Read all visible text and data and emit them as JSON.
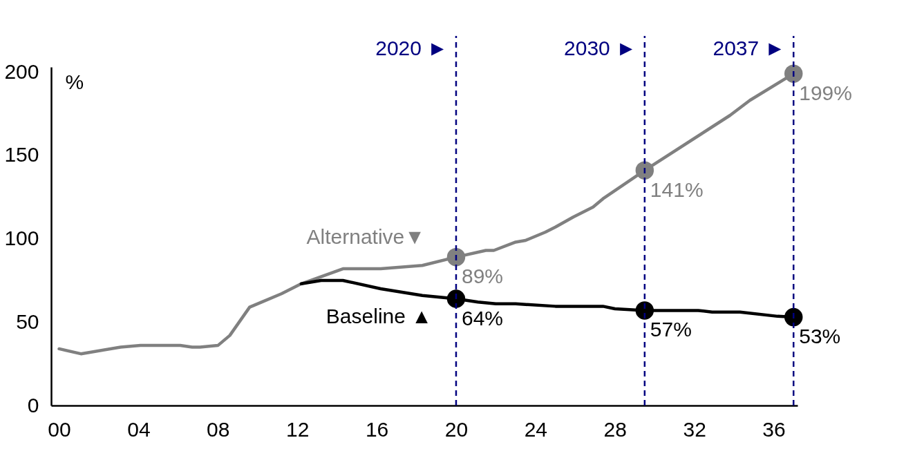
{
  "chart_data": {
    "type": "line",
    "ylabel": "%",
    "xlim": [
      -0.4,
      37.2
    ],
    "xticks": [
      {
        "value": 0,
        "label": "00"
      },
      {
        "value": 4,
        "label": "04"
      },
      {
        "value": 8,
        "label": "08"
      },
      12,
      16,
      20,
      24,
      28,
      32,
      36
    ],
    "ylim": [
      0,
      203
    ],
    "yticks": [
      0,
      50,
      100,
      150,
      200
    ],
    "grid": false,
    "marker": "none",
    "line_style": "solid",
    "series": [
      {
        "name": "Alternative▼",
        "color": "#808080",
        "x": [
          0,
          1.1,
          3.1,
          4.1,
          6.1,
          6.7,
          7.1,
          8.0,
          8.6,
          9.6,
          10.2,
          11.2,
          12.2,
          14.3,
          16.2,
          18.3,
          20,
          21.5,
          21.9,
          23,
          23.5,
          24.5,
          25,
          25.9,
          26.9,
          27.4,
          29.5,
          33.8,
          34.8,
          37
        ],
        "values": [
          34,
          31,
          35,
          36,
          36,
          35,
          35,
          36,
          42,
          59,
          62,
          67,
          73,
          82,
          82,
          84,
          89,
          93,
          93,
          98,
          99,
          104,
          107,
          113,
          119,
          124,
          141,
          174,
          183,
          199
        ]
      },
      {
        "name": "Baseline ▲",
        "color": "#000000",
        "x": [
          12.2,
          13.2,
          14.3,
          16.2,
          18.3,
          20,
          21.1,
          22,
          23,
          25,
          27.4,
          28,
          29.5,
          32.2,
          32.9,
          34.3,
          36.2,
          37
        ],
        "values": [
          73,
          75,
          75,
          70,
          66,
          64,
          62,
          61,
          61,
          59.5,
          59.5,
          58,
          57,
          57,
          56,
          56,
          53.5,
          53
        ]
      },
      {
        "type": "scatter",
        "marker": "circle",
        "color": "#808080",
        "x": [
          20,
          29.5,
          37
        ],
        "values": [
          89,
          141,
          199
        ],
        "value_labels": [
          "89%",
          "141%",
          "199%"
        ]
      },
      {
        "type": "scatter",
        "marker": "circle",
        "color": "#000000",
        "x": [
          20,
          29.5,
          37
        ],
        "values": [
          64,
          57,
          53
        ],
        "value_labels": [
          "64%",
          "57%",
          "53%"
        ]
      }
    ],
    "ref_lines": [
      {
        "axis": "x",
        "value": 20,
        "label": "2020 ►",
        "color": "#000080",
        "line_style": "dashed"
      },
      {
        "axis": "x",
        "value": 29.5,
        "label": "2030 ►",
        "color": "#000080",
        "line_style": "dashed"
      },
      {
        "axis": "x",
        "value": 37,
        "label": "2037 ►",
        "color": "#000080",
        "line_style": "dashed"
      }
    ]
  }
}
